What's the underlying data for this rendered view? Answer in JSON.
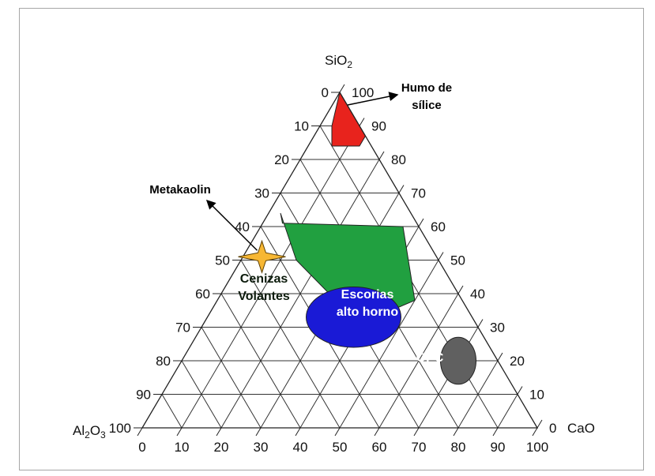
{
  "chart_data": {
    "type": "ternary",
    "axes": {
      "top": {
        "label_main": "SiO",
        "label_sub": "2"
      },
      "left": {
        "label_main": "Al",
        "label_sub1": "2",
        "label_mid": "O",
        "label_sub2": "3"
      },
      "right": {
        "label_main": "CaO"
      }
    },
    "ticks": [
      "0",
      "10",
      "20",
      "30",
      "40",
      "50",
      "60",
      "70",
      "80",
      "90",
      "100"
    ],
    "grid": true,
    "grid_step": 10,
    "regions": [
      {
        "id": "humo",
        "label": "",
        "color": "#e8231d",
        "points": [
          [
            100,
            0
          ],
          [
            90,
            3
          ],
          [
            84,
            6
          ],
          [
            84,
            13
          ],
          [
            87,
            13
          ],
          [
            95,
            5
          ]
        ]
      },
      {
        "id": "cenizas",
        "label_lines": [
          "Cenizas",
          "Volantes"
        ],
        "color": "#21a040",
        "points": [
          [
            64,
            3
          ],
          [
            50,
            14
          ],
          [
            38,
            30
          ],
          [
            32,
            41
          ],
          [
            38,
            50
          ],
          [
            60,
            36
          ],
          [
            61,
            5
          ]
        ]
      },
      {
        "id": "escorias",
        "label_lines": [
          "Escorias",
          "alto horno"
        ],
        "color": "#1a1ad6",
        "ellipse": {
          "center": [
            33,
            37
          ],
          "rx_cao": 12,
          "ry_sio2": 9
        }
      },
      {
        "id": "opc",
        "label_lines": [
          "OPC"
        ],
        "color": "#606060",
        "ellipse": {
          "center": [
            20,
            70
          ],
          "rx_cao": 4.5,
          "ry_sio2": 7
        }
      }
    ],
    "annotations": [
      {
        "id": "humo",
        "label_lines": [
          "Humo de",
          "sílice"
        ]
      },
      {
        "id": "metakaolin",
        "label_lines": [
          "Metakaolin"
        ],
        "point": {
          "SiO2": 51,
          "CaO": 0
        }
      }
    ]
  }
}
